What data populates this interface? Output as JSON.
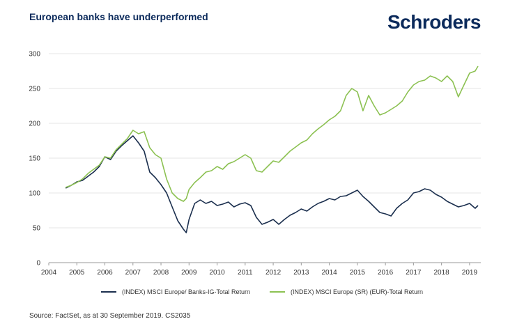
{
  "header": {
    "title": "European banks have underperformed",
    "logo": "Schroders"
  },
  "footer": {
    "source": "Source: FactSet, as at 30 September 2019. CS2035"
  },
  "colors": {
    "banks": "#1b2f4e",
    "europe": "#8cc152",
    "grid": "#e6e6e6",
    "title": "#0b2a5b"
  },
  "chart_data": {
    "type": "line",
    "title": "European banks have underperformed",
    "xlabel": "",
    "ylabel": "",
    "xlim": [
      2004.0,
      2019.4
    ],
    "ylim": [
      0,
      300
    ],
    "yticks": [
      0,
      50,
      100,
      150,
      200,
      250,
      300
    ],
    "xticks": [
      "2004",
      "2005",
      "2006",
      "2007",
      "2008",
      "2009",
      "2010",
      "2011",
      "2012",
      "2013",
      "2014",
      "2015",
      "2016",
      "2017",
      "2018",
      "2019"
    ],
    "grid": "horizontal",
    "legend_position": "bottom",
    "series": [
      {
        "name": "(INDEX) MSCI Europe/ Banks-IG-Total Return",
        "color": "#1b2f4e",
        "x": [
          2004.6,
          2004.8,
          2005.0,
          2005.2,
          2005.4,
          2005.6,
          2005.8,
          2006.0,
          2006.2,
          2006.4,
          2006.6,
          2006.8,
          2007.0,
          2007.2,
          2007.4,
          2007.6,
          2007.8,
          2008.0,
          2008.2,
          2008.4,
          2008.6,
          2008.8,
          2008.9,
          2009.0,
          2009.2,
          2009.4,
          2009.6,
          2009.8,
          2010.0,
          2010.2,
          2010.4,
          2010.6,
          2010.8,
          2011.0,
          2011.2,
          2011.4,
          2011.6,
          2011.8,
          2012.0,
          2012.2,
          2012.4,
          2012.6,
          2012.8,
          2013.0,
          2013.2,
          2013.4,
          2013.6,
          2013.8,
          2014.0,
          2014.2,
          2014.4,
          2014.6,
          2014.8,
          2015.0,
          2015.2,
          2015.4,
          2015.6,
          2015.8,
          2016.0,
          2016.2,
          2016.4,
          2016.6,
          2016.8,
          2017.0,
          2017.2,
          2017.4,
          2017.6,
          2017.8,
          2018.0,
          2018.2,
          2018.4,
          2018.6,
          2018.8,
          2019.0,
          2019.2,
          2019.3
        ],
        "values": [
          107,
          111,
          116,
          118,
          124,
          130,
          138,
          152,
          148,
          160,
          168,
          175,
          182,
          172,
          160,
          130,
          122,
          112,
          100,
          80,
          60,
          48,
          43,
          62,
          85,
          90,
          85,
          88,
          82,
          84,
          87,
          80,
          84,
          86,
          82,
          65,
          55,
          58,
          62,
          55,
          62,
          68,
          72,
          77,
          74,
          80,
          85,
          88,
          92,
          90,
          95,
          96,
          100,
          104,
          95,
          88,
          80,
          72,
          70,
          67,
          78,
          85,
          90,
          100,
          102,
          106,
          104,
          98,
          94,
          88,
          84,
          80,
          82,
          85,
          78,
          82
        ]
      },
      {
        "name": "(INDEX) MSCI Europe (SR) (EUR)-Total Return",
        "color": "#8cc152",
        "x": [
          2004.6,
          2004.8,
          2005.0,
          2005.2,
          2005.4,
          2005.6,
          2005.8,
          2006.0,
          2006.2,
          2006.4,
          2006.6,
          2006.8,
          2007.0,
          2007.2,
          2007.4,
          2007.6,
          2007.8,
          2008.0,
          2008.2,
          2008.4,
          2008.6,
          2008.8,
          2008.9,
          2009.0,
          2009.2,
          2009.4,
          2009.6,
          2009.8,
          2010.0,
          2010.2,
          2010.4,
          2010.6,
          2010.8,
          2011.0,
          2011.2,
          2011.4,
          2011.6,
          2011.8,
          2012.0,
          2012.2,
          2012.4,
          2012.6,
          2012.8,
          2013.0,
          2013.2,
          2013.4,
          2013.6,
          2013.8,
          2014.0,
          2014.2,
          2014.4,
          2014.6,
          2014.8,
          2015.0,
          2015.2,
          2015.4,
          2015.6,
          2015.8,
          2016.0,
          2016.2,
          2016.4,
          2016.6,
          2016.8,
          2017.0,
          2017.2,
          2017.4,
          2017.6,
          2017.8,
          2018.0,
          2018.2,
          2018.4,
          2018.6,
          2018.8,
          2019.0,
          2019.2,
          2019.3
        ],
        "values": [
          108,
          111,
          115,
          120,
          128,
          134,
          140,
          152,
          150,
          162,
          170,
          178,
          190,
          185,
          188,
          165,
          155,
          150,
          120,
          100,
          92,
          88,
          92,
          105,
          115,
          122,
          130,
          132,
          138,
          134,
          142,
          145,
          150,
          155,
          150,
          132,
          130,
          138,
          146,
          144,
          152,
          160,
          166,
          172,
          176,
          185,
          192,
          198,
          205,
          210,
          218,
          240,
          250,
          245,
          218,
          240,
          225,
          212,
          215,
          220,
          225,
          232,
          245,
          255,
          260,
          262,
          268,
          265,
          260,
          268,
          260,
          238,
          255,
          272,
          275,
          282
        ]
      }
    ]
  }
}
